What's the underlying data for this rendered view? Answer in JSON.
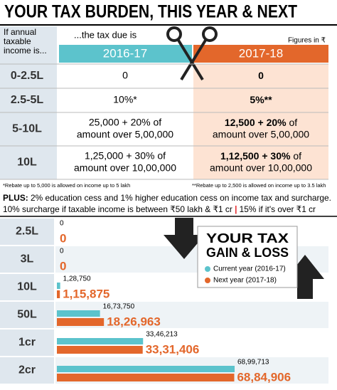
{
  "title": "YOUR TAX BURDEN, THIS YEAR & NEXT",
  "table": {
    "header": {
      "income_lines": [
        "If annual",
        "taxable",
        "income is..."
      ],
      "tax_due": "...the tax due is",
      "figures": "Figures in ₹",
      "year1": "2016-17",
      "year2": "2017-18"
    },
    "rows": [
      {
        "income": "0-2.5L",
        "y2016": [
          "0"
        ],
        "y2017_bold": "0"
      },
      {
        "income": "2.5-5L",
        "y2016": [
          "10%*"
        ],
        "y2017_bold": "5%**"
      },
      {
        "income": "5-10L",
        "y2016": [
          "25,000 + 20% of",
          "amount over 5,00,000"
        ],
        "y2017_bold": "12,500 + 20%",
        "y2017_rest": [
          " of",
          "amount over 5,00,000"
        ]
      },
      {
        "income": "10L",
        "y2016": [
          "1,25,000 + 30% of",
          "amount over 10,00,000"
        ],
        "y2017_bold": "1,12,500 + 30%",
        "y2017_rest": [
          " of",
          "amount over 10,00,000"
        ]
      }
    ]
  },
  "footnotes": [
    "*Rebate up to 5,000 is allowed on income up to 5 lakh",
    "**Rebate up to 2,500 is allowed on income up to 3.5 lakh"
  ],
  "plus": {
    "label": "PLUS:",
    "line1": " 2% education cess and 1% higher education cess on income tax and surcharge.",
    "line2a": "10% surcharge if taxable income is between ₹50 lakh & ₹1 cr ",
    "separator": "|",
    "line2b": " 15% if it's over ₹1 cr"
  },
  "chart_data": {
    "type": "bar",
    "orientation": "horizontal",
    "legend_title": [
      "YOUR TAX",
      "GAIN & LOSS"
    ],
    "categories": [
      "2.5L",
      "3L",
      "10L",
      "50L",
      "1cr",
      "2cr"
    ],
    "series": [
      {
        "name": "Current year (2016-17)",
        "color": "#5cc3cc",
        "values": [
          0,
          0,
          128750,
          1673750,
          3346213,
          6899713
        ],
        "value_labels": [
          "0",
          "0",
          "1,28,750",
          "16,73,750",
          "33,46,213",
          "68,99,713"
        ]
      },
      {
        "name": "Next year (2017-18)",
        "color": "#e3672b",
        "values": [
          0,
          0,
          115875,
          1826963,
          3331406,
          6884906
        ],
        "value_labels": [
          "0",
          "0",
          "1,15,875",
          "18,26,963",
          "33,31,406",
          "68,84,906"
        ]
      }
    ]
  }
}
